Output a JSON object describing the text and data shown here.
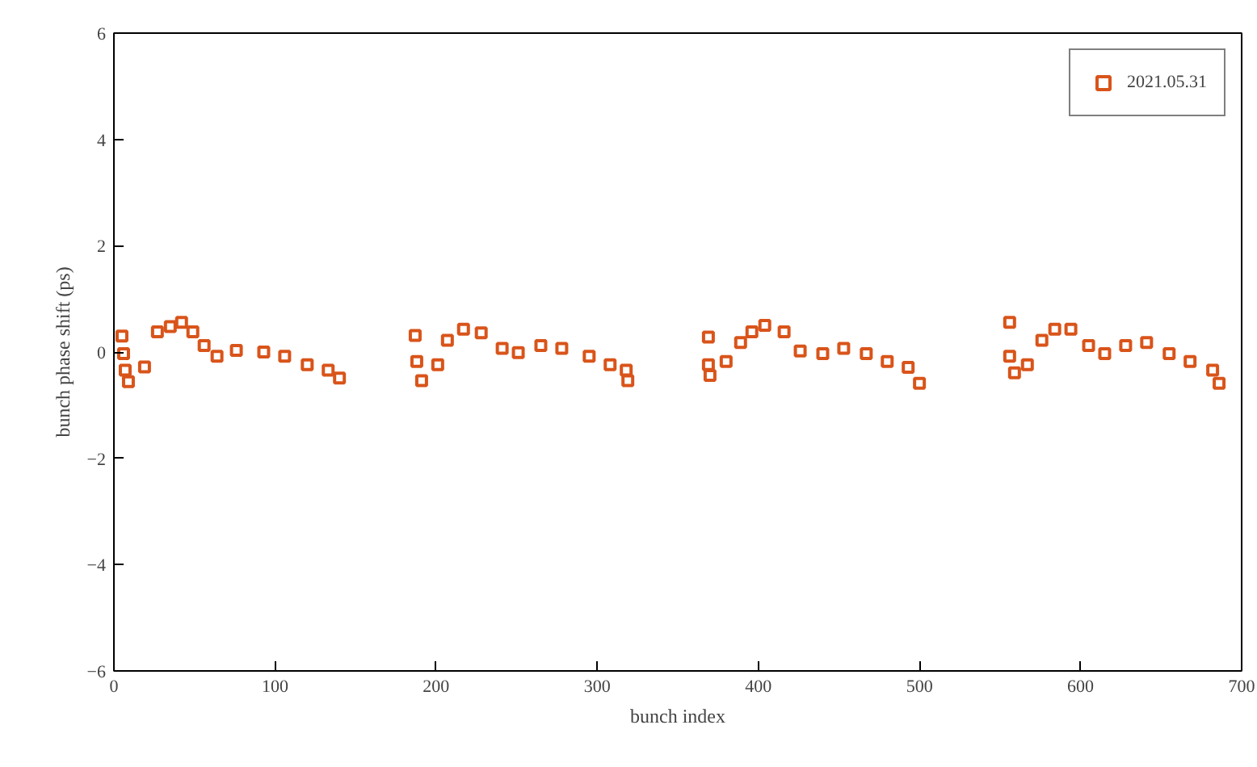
{
  "chart_data": {
    "type": "scatter",
    "xlabel": "bunch index",
    "ylabel": "bunch phase shift (ps)",
    "series": [
      {
        "name": "2021.05.31",
        "color": "#d9541a",
        "x": [
          5,
          6,
          7,
          9,
          19,
          27,
          35,
          42,
          49,
          56,
          64,
          76,
          93,
          106,
          120,
          133,
          140,
          187,
          188,
          191,
          201,
          207,
          217,
          228,
          241,
          251,
          265,
          278,
          295,
          308,
          318,
          319,
          369,
          369,
          370,
          380,
          389,
          396,
          404,
          416,
          426,
          440,
          453,
          467,
          480,
          493,
          500,
          556,
          556,
          559,
          567,
          576,
          584,
          594,
          605,
          615,
          628,
          641,
          655,
          668,
          682,
          686
        ],
        "values": [
          0.3,
          -0.03,
          -0.34,
          -0.56,
          -0.28,
          0.38,
          0.48,
          0.56,
          0.38,
          0.12,
          -0.08,
          0.03,
          0.0,
          -0.08,
          -0.24,
          -0.34,
          -0.49,
          0.31,
          -0.18,
          -0.54,
          -0.24,
          0.22,
          0.43,
          0.36,
          0.07,
          -0.01,
          0.12,
          0.07,
          -0.08,
          -0.24,
          -0.34,
          -0.54,
          0.28,
          -0.24,
          -0.44,
          -0.18,
          0.18,
          0.38,
          0.5,
          0.38,
          0.02,
          -0.03,
          0.07,
          -0.03,
          -0.18,
          -0.29,
          -0.59,
          0.56,
          -0.08,
          -0.39,
          -0.24,
          0.22,
          0.43,
          0.43,
          0.12,
          -0.03,
          0.12,
          0.18,
          -0.03,
          -0.18,
          -0.34,
          -0.59
        ]
      }
    ],
    "marker": "square",
    "xlim": [
      0,
      700
    ],
    "ylim": [
      -6,
      6
    ],
    "xticks": [
      0,
      100,
      200,
      300,
      400,
      500,
      600,
      700
    ],
    "yticks": [
      -6,
      -4,
      -2,
      0,
      2,
      4,
      6
    ],
    "grid": false,
    "legend": "top right"
  }
}
